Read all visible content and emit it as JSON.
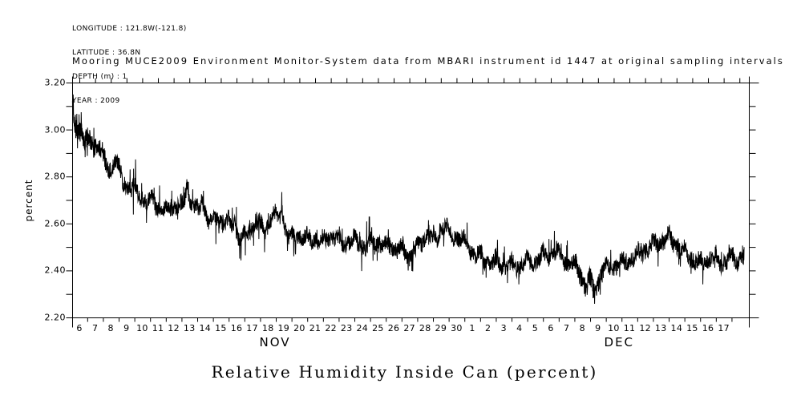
{
  "page": {
    "background": "#ffffff",
    "foreground": "#000000"
  },
  "header": {
    "meta_lines": [
      "LONGITUDE : 121.8W(-121.8)",
      "LATITUDE : 36.8N",
      "DEPTH (m) : 1",
      "YEAR : 2009"
    ],
    "title": "Mooring MUCE2009 Environment Monitor-System data from MBARI instrument id 1447 at original sampling intervals"
  },
  "footer": {
    "caption": "Relative Humidity Inside Can (percent)"
  },
  "chart_data": {
    "type": "line",
    "title": "Mooring MUCE2009 Environment Monitor-System data from MBARI instrument id 1447 at original sampling intervals",
    "subtitle": "Relative Humidity Inside Can (percent)",
    "ylabel": "percent",
    "xlabel": "",
    "ylim": [
      2.2,
      3.2
    ],
    "y_major_ticks": [
      {
        "label": "3.20",
        "value": 3.2
      },
      {
        "label": "3.00",
        "value": 3.0
      },
      {
        "label": "2.80",
        "value": 2.8
      },
      {
        "label": "2.60",
        "value": 2.6
      },
      {
        "label": "2.40",
        "value": 2.4
      },
      {
        "label": "2.20",
        "value": 2.2
      }
    ],
    "y_minor_step": 0.1,
    "x_domain_days": [
      5.54,
      48.6
    ],
    "x_tick_labels_nov": [
      "6",
      "7",
      "8",
      "9",
      "10",
      "11",
      "12",
      "13",
      "14",
      "15",
      "16",
      "17",
      "18",
      "19",
      "20",
      "21",
      "22",
      "23",
      "24",
      "25",
      "26",
      "27",
      "28",
      "29",
      "30"
    ],
    "x_tick_labels_dec": [
      "1",
      "2",
      "3",
      "4",
      "5",
      "6",
      "7",
      "8",
      "9",
      "10",
      "11",
      "12",
      "13",
      "14",
      "15",
      "16",
      "17"
    ],
    "months": [
      {
        "label": "NOV",
        "center_day": 18.45
      },
      {
        "label": "DEC",
        "center_day": 40.35
      }
    ],
    "line_color": "#000000",
    "grid": false,
    "legend": "none",
    "trend_points": [
      [
        5.56,
        3.07
      ],
      [
        5.6,
        3.12
      ],
      [
        5.66,
        3.05
      ],
      [
        5.75,
        3.01
      ],
      [
        5.9,
        2.98
      ],
      [
        6.0,
        2.99
      ],
      [
        6.15,
        3.0
      ],
      [
        6.3,
        2.96
      ],
      [
        6.5,
        2.94
      ],
      [
        6.7,
        2.96
      ],
      [
        6.9,
        2.93
      ],
      [
        7.1,
        2.94
      ],
      [
        7.3,
        2.92
      ],
      [
        7.5,
        2.88
      ],
      [
        7.7,
        2.85
      ],
      [
        7.9,
        2.83
      ],
      [
        8.1,
        2.85
      ],
      [
        8.3,
        2.88
      ],
      [
        8.5,
        2.83
      ],
      [
        8.75,
        2.79
      ],
      [
        9.0,
        2.77
      ],
      [
        9.3,
        2.75
      ],
      [
        9.6,
        2.74
      ],
      [
        9.9,
        2.72
      ],
      [
        10.2,
        2.7
      ],
      [
        10.5,
        2.68
      ],
      [
        10.7,
        2.71
      ],
      [
        10.9,
        2.68
      ],
      [
        11.1,
        2.66
      ],
      [
        11.4,
        2.65
      ],
      [
        11.7,
        2.67
      ],
      [
        12.0,
        2.67
      ],
      [
        12.3,
        2.68
      ],
      [
        12.6,
        2.66
      ],
      [
        12.85,
        2.78
      ],
      [
        13.0,
        2.71
      ],
      [
        13.2,
        2.68
      ],
      [
        13.4,
        2.66
      ],
      [
        13.6,
        2.64
      ],
      [
        13.8,
        2.72
      ],
      [
        14.0,
        2.65
      ],
      [
        14.2,
        2.61
      ],
      [
        14.5,
        2.62
      ],
      [
        14.8,
        2.63
      ],
      [
        15.1,
        2.6
      ],
      [
        15.4,
        2.61
      ],
      [
        15.7,
        2.58
      ],
      [
        15.85,
        2.63
      ],
      [
        16.0,
        2.56
      ],
      [
        16.3,
        2.53
      ],
      [
        16.6,
        2.55
      ],
      [
        16.9,
        2.58
      ],
      [
        17.2,
        2.61
      ],
      [
        17.5,
        2.59
      ],
      [
        17.8,
        2.57
      ],
      [
        18.1,
        2.61
      ],
      [
        18.35,
        2.64
      ],
      [
        18.6,
        2.62
      ],
      [
        18.9,
        2.66
      ],
      [
        19.1,
        2.58
      ],
      [
        19.4,
        2.53
      ],
      [
        19.7,
        2.55
      ],
      [
        20.0,
        2.55
      ],
      [
        20.3,
        2.54
      ],
      [
        20.6,
        2.53
      ],
      [
        20.9,
        2.54
      ],
      [
        21.2,
        2.53
      ],
      [
        21.5,
        2.52
      ],
      [
        21.8,
        2.54
      ],
      [
        22.1,
        2.55
      ],
      [
        22.4,
        2.53
      ],
      [
        22.7,
        2.52
      ],
      [
        23.0,
        2.52
      ],
      [
        23.3,
        2.53
      ],
      [
        23.6,
        2.52
      ],
      [
        23.9,
        2.51
      ],
      [
        24.2,
        2.5
      ],
      [
        24.5,
        2.51
      ],
      [
        24.8,
        2.53
      ],
      [
        25.1,
        2.52
      ],
      [
        25.4,
        2.5
      ],
      [
        25.7,
        2.51
      ],
      [
        26.0,
        2.5
      ],
      [
        26.3,
        2.49
      ],
      [
        26.6,
        2.48
      ],
      [
        26.9,
        2.47
      ],
      [
        27.2,
        2.48
      ],
      [
        27.5,
        2.49
      ],
      [
        27.8,
        2.52
      ],
      [
        28.1,
        2.56
      ],
      [
        28.4,
        2.54
      ],
      [
        28.7,
        2.53
      ],
      [
        29.0,
        2.57
      ],
      [
        29.3,
        2.6
      ],
      [
        29.6,
        2.54
      ],
      [
        29.9,
        2.55
      ],
      [
        30.2,
        2.54
      ],
      [
        30.5,
        2.52
      ],
      [
        30.8,
        2.49
      ],
      [
        31.1,
        2.47
      ],
      [
        31.4,
        2.46
      ],
      [
        31.7,
        2.45
      ],
      [
        32.0,
        2.44
      ],
      [
        32.4,
        2.43
      ],
      [
        32.8,
        2.43
      ],
      [
        33.2,
        2.42
      ],
      [
        33.6,
        2.42
      ],
      [
        34.0,
        2.42
      ],
      [
        34.3,
        2.44
      ],
      [
        34.6,
        2.43
      ],
      [
        34.9,
        2.43
      ],
      [
        35.2,
        2.45
      ],
      [
        35.5,
        2.46
      ],
      [
        35.8,
        2.45
      ],
      [
        36.1,
        2.47
      ],
      [
        36.35,
        2.49
      ],
      [
        36.6,
        2.46
      ],
      [
        36.9,
        2.44
      ],
      [
        37.2,
        2.43
      ],
      [
        37.5,
        2.42
      ],
      [
        37.8,
        2.4
      ],
      [
        38.0,
        2.37
      ],
      [
        38.25,
        2.33
      ],
      [
        38.45,
        2.36
      ],
      [
        38.65,
        2.33
      ],
      [
        38.85,
        2.3
      ],
      [
        39.05,
        2.36
      ],
      [
        39.3,
        2.39
      ],
      [
        39.6,
        2.41
      ],
      [
        39.9,
        2.41
      ],
      [
        40.2,
        2.42
      ],
      [
        40.5,
        2.43
      ],
      [
        40.8,
        2.44
      ],
      [
        41.1,
        2.45
      ],
      [
        41.4,
        2.46
      ],
      [
        41.7,
        2.48
      ],
      [
        42.0,
        2.49
      ],
      [
        42.3,
        2.5
      ],
      [
        42.6,
        2.51
      ],
      [
        42.9,
        2.52
      ],
      [
        43.2,
        2.53
      ],
      [
        43.5,
        2.54
      ],
      [
        43.8,
        2.52
      ],
      [
        44.1,
        2.5
      ],
      [
        44.4,
        2.48
      ],
      [
        44.7,
        2.47
      ],
      [
        45.0,
        2.45
      ],
      [
        45.3,
        2.44
      ],
      [
        45.6,
        2.43
      ],
      [
        45.9,
        2.44
      ],
      [
        46.2,
        2.46
      ],
      [
        46.5,
        2.45
      ],
      [
        46.8,
        2.43
      ],
      [
        47.1,
        2.44
      ],
      [
        47.4,
        2.46
      ],
      [
        47.7,
        2.44
      ],
      [
        48.0,
        2.45
      ],
      [
        48.32,
        2.47
      ]
    ],
    "noise": {
      "seed": 20091106,
      "base_amplitude": 0.034,
      "start_extra_amplitude": 0.028,
      "start_decay_days": 1.1,
      "dip_extra_amplitude": 0.008,
      "spike_probability": 0.04,
      "spike_min": 0.025,
      "spike_max": 0.075,
      "diurnal_amplitude": 0.016,
      "semidiurnal_amplitude": 0.009,
      "samples_per_day": 72
    }
  }
}
